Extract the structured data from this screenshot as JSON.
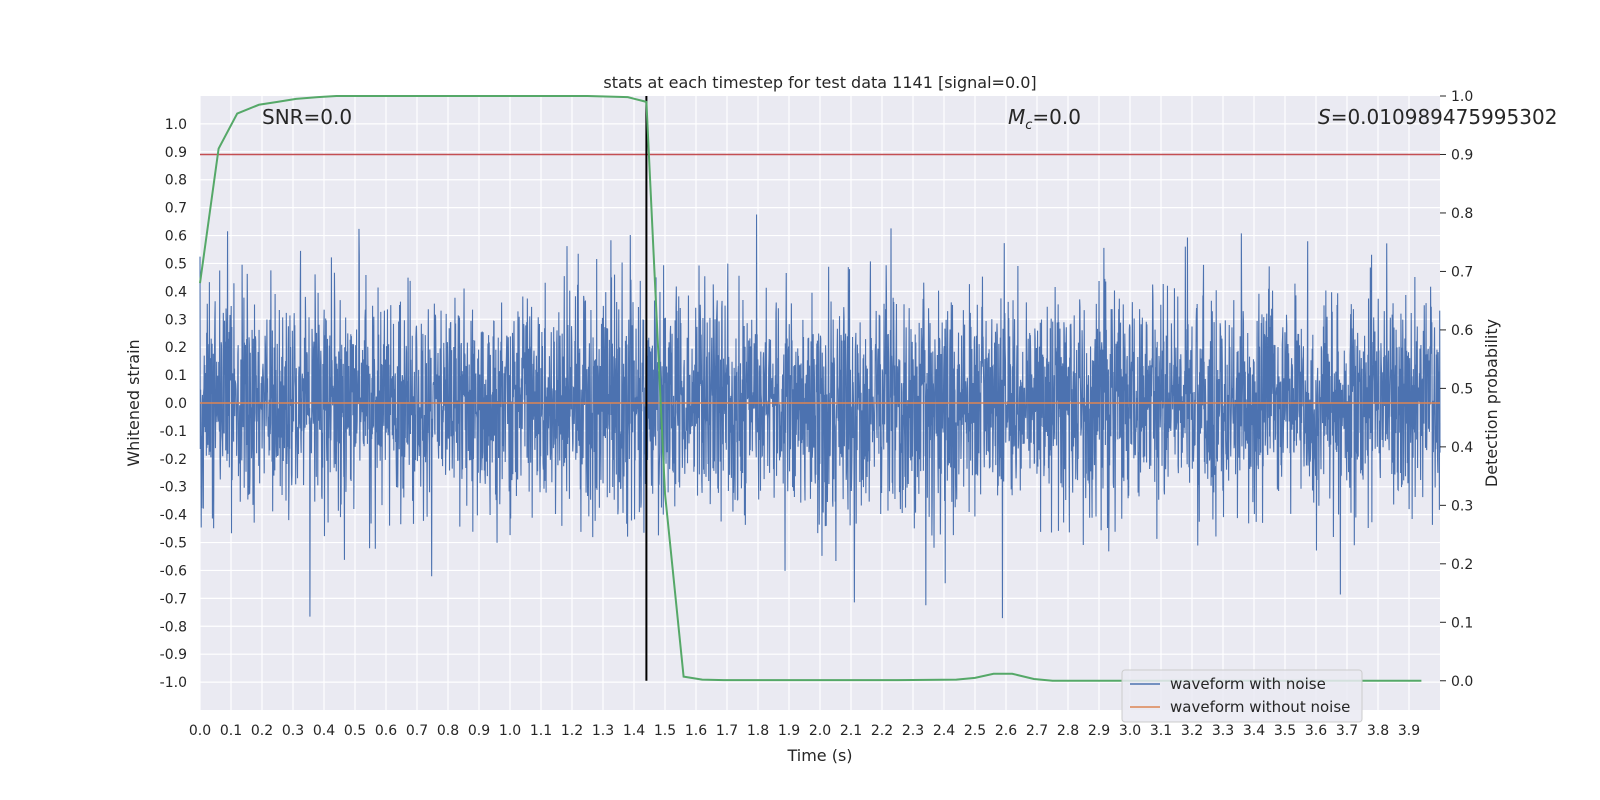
{
  "chart_data": {
    "type": "line",
    "title": "stats at each timestep for test data 1141 [signal=0.0]",
    "xlabel": "Time (s)",
    "ylabel": "Whitened strain",
    "y2label": "Detection probability",
    "xlim": [
      0.0,
      4.0
    ],
    "ylim": [
      -1.1,
      1.1
    ],
    "y2lim": [
      -0.05,
      1.0
    ],
    "x_ticks": [
      "0.0",
      "0.1",
      "0.2",
      "0.3",
      "0.4",
      "0.5",
      "0.6",
      "0.7",
      "0.8",
      "0.9",
      "1.0",
      "1.1",
      "1.2",
      "1.3",
      "1.4",
      "1.5",
      "1.6",
      "1.7",
      "1.8",
      "1.9",
      "2.0",
      "2.1",
      "2.2",
      "2.3",
      "2.4",
      "2.5",
      "2.6",
      "2.7",
      "2.8",
      "2.9",
      "3.0",
      "3.1",
      "3.2",
      "3.3",
      "3.4",
      "3.5",
      "3.6",
      "3.7",
      "3.8",
      "3.9"
    ],
    "y_ticks": [
      "1.0",
      "0.9",
      "0.8",
      "0.7",
      "0.6",
      "0.5",
      "0.4",
      "0.3",
      "0.2",
      "0.1",
      "0.0",
      "-0.1",
      "-0.2",
      "-0.3",
      "-0.4",
      "-0.5",
      "-0.6",
      "-0.7",
      "-0.8",
      "-0.9",
      "-1.0"
    ],
    "y2_ticks": [
      "1.0",
      "0.9",
      "0.8",
      "0.7",
      "0.6",
      "0.5",
      "0.4",
      "0.3",
      "0.2",
      "0.1",
      "0.0"
    ],
    "annotations": {
      "snr": "SNR=0.0",
      "mc_symbol": "M",
      "mc_sub": "c",
      "mc_value": "=0.0",
      "s_symbol": "S",
      "s_value": "=0.010989475995302"
    },
    "threshold_y2": 0.9,
    "vline_x": 1.44,
    "legend": {
      "position": "lower right",
      "entries": [
        "waveform with noise",
        "waveform without noise"
      ]
    },
    "series": [
      {
        "name": "waveform with noise",
        "color": "#4c72b0",
        "noise_amplitude": 0.55
      },
      {
        "name": "waveform without noise",
        "color": "#dd8452",
        "constant": 0.0
      },
      {
        "name": "detection probability",
        "color": "#55a868",
        "x": [
          0.0,
          0.06,
          0.12,
          0.19,
          0.25,
          0.31,
          0.38,
          0.44,
          0.5,
          0.75,
          1.0,
          1.25,
          1.38,
          1.44,
          1.5,
          1.56,
          1.62,
          1.69,
          2.0,
          2.25,
          2.44,
          2.5,
          2.56,
          2.62,
          2.69,
          2.75,
          2.81,
          3.0,
          3.5,
          3.94
        ],
        "y": [
          0.68,
          0.91,
          0.97,
          0.985,
          0.99,
          0.995,
          0.998,
          1.0,
          1.0,
          1.0,
          1.0,
          1.0,
          0.998,
          0.99,
          0.32,
          0.007,
          0.002,
          0.001,
          0.001,
          0.001,
          0.002,
          0.005,
          0.012,
          0.012,
          0.003,
          0.0,
          0.0,
          0.0,
          0.0,
          0.0
        ]
      }
    ],
    "threshold_color": "#c44e52",
    "vline_color": "#000000"
  }
}
